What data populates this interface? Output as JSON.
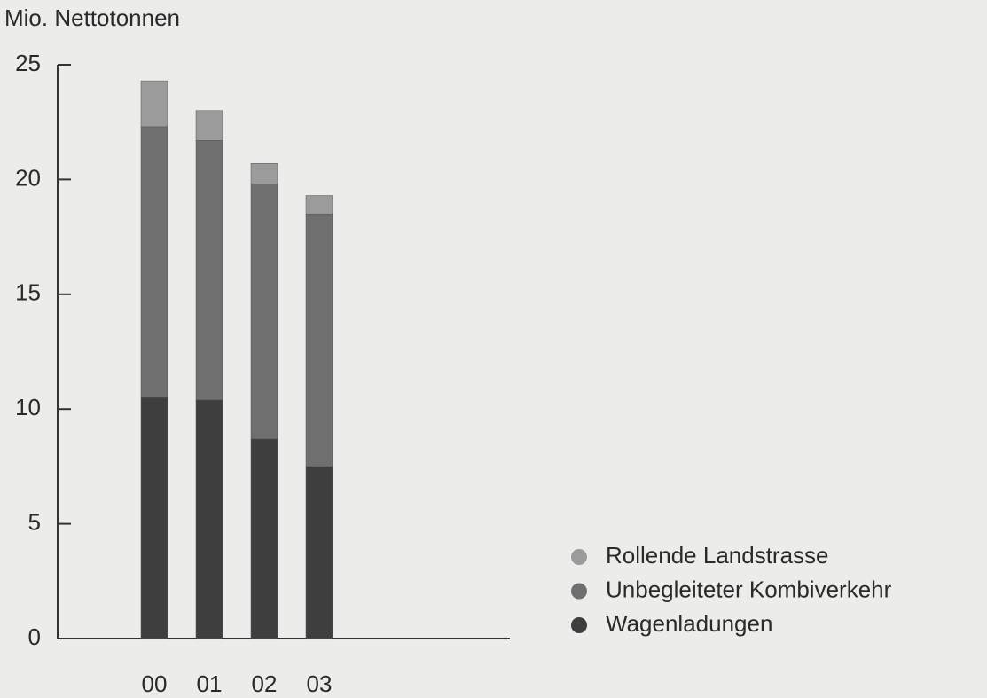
{
  "chart_data": {
    "type": "stacked_bar",
    "y_label": "Mio. Nettotonnen",
    "categories": [
      "00",
      "01",
      "02",
      "03"
    ],
    "series": [
      {
        "name": "Wagenladungen",
        "color": "#3e3e3e",
        "values": [
          10.5,
          10.4,
          8.7,
          7.5
        ]
      },
      {
        "name": "Unbegleiteter Kombiverkehr",
        "color": "#6f6f6f",
        "values": [
          11.8,
          11.3,
          11.1,
          11.0
        ]
      },
      {
        "name": "Rollende Landstrasse",
        "color": "#9b9b9b",
        "values": [
          2.0,
          1.3,
          0.9,
          0.8
        ]
      }
    ],
    "ylim": [
      0,
      25
    ],
    "yticks": [
      0,
      5,
      10,
      15,
      20,
      25
    ],
    "legend": "right"
  }
}
